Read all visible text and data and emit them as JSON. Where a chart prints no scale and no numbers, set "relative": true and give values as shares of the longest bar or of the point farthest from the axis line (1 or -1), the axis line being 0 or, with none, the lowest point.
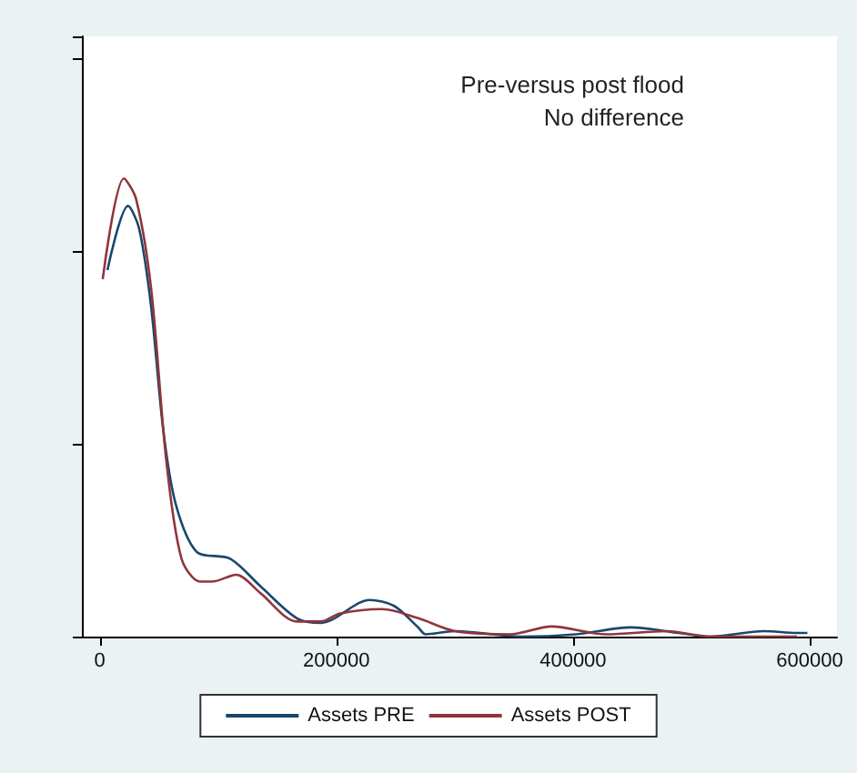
{
  "chart_data": {
    "type": "line",
    "relative": true,
    "annotations": [
      "Pre-versus post flood",
      "No difference"
    ],
    "xlim": [
      -15000,
      623000
    ],
    "xticks": [
      0,
      200000,
      400000,
      600000
    ],
    "legend": "bottom",
    "marker": "none",
    "line_style": "solid",
    "series": [
      {
        "name": "Assets PRE",
        "color": "#1a476f",
        "x": [
          6600,
          24000,
          33400,
          43500,
          53800,
          64200,
          82000,
          110300,
          135800,
          166600,
          187200,
          228200,
          248800,
          269200,
          275400,
          300000,
          356500,
          402600,
          448800,
          489200,
          515400,
          561500,
          589200,
          598000
        ],
        "values": [
          0.8,
          0.94,
          0.89,
          0.72,
          0.45,
          0.29,
          0.185,
          0.17,
          0.11,
          0.04,
          0.03,
          0.08,
          0.067,
          0.02,
          0.005,
          0.012,
          0,
          0.005,
          0.02,
          0.008,
          0,
          0.012,
          0.008,
          0.008
        ]
      },
      {
        "name": "Assets POST",
        "color": "#90353b",
        "x": [
          2600,
          20500,
          30800,
          43500,
          56500,
          69200,
          84600,
          94900,
          115400,
          135800,
          166600,
          187200,
          202600,
          238500,
          269200,
          300000,
          346000,
          382000,
          428000,
          479500,
          515400,
          589200
        ],
        "values": [
          0.78,
          1.0,
          0.955,
          0.76,
          0.38,
          0.17,
          0.12,
          0.12,
          0.135,
          0.095,
          0.033,
          0.033,
          0.05,
          0.06,
          0.04,
          0.012,
          0.005,
          0.022,
          0.005,
          0.012,
          0,
          0
        ]
      }
    ]
  }
}
